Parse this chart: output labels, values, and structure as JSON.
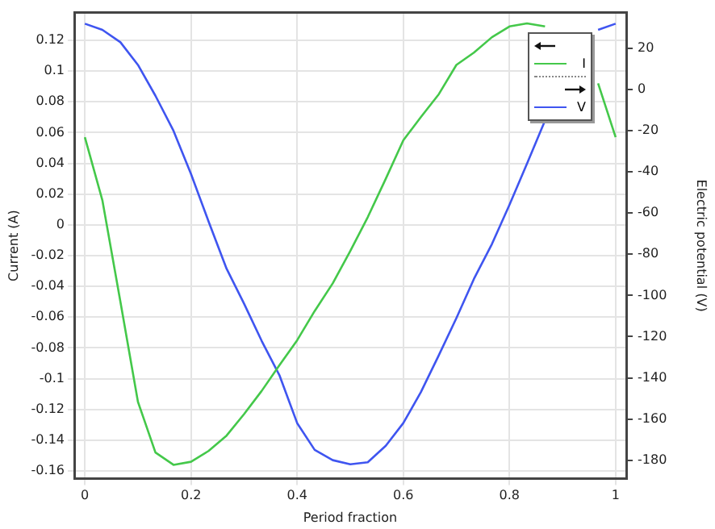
{
  "chart_data": {
    "type": "line",
    "xlabel": "Period fraction",
    "ylabel": "Current (A)",
    "y2label": "Electric potential (V)",
    "x": [
      0,
      0.033,
      0.067,
      0.1,
      0.133,
      0.167,
      0.2,
      0.233,
      0.267,
      0.3,
      0.333,
      0.367,
      0.4,
      0.433,
      0.467,
      0.5,
      0.533,
      0.567,
      0.6,
      0.633,
      0.667,
      0.7,
      0.733,
      0.767,
      0.8,
      0.833,
      0.867,
      0.9,
      0.933,
      0.967,
      1
    ],
    "series": [
      {
        "name": "I",
        "color": "#44c84a",
        "values": [
          0.057,
          0.016,
          -0.05,
          -0.115,
          -0.148,
          -0.156,
          -0.154,
          -0.147,
          -0.137,
          -0.123,
          -0.108,
          -0.091,
          -0.075,
          -0.056,
          -0.038,
          -0.017,
          0.005,
          0.03,
          0.055,
          0.07,
          0.085,
          0.104,
          0.112,
          0.122,
          0.129,
          0.131,
          0.129,
          null,
          null,
          0.092,
          0.057
        ]
      },
      {
        "name": "V",
        "color": "#3f55f0",
        "axis": "y2",
        "values": [
          32,
          29,
          23,
          12,
          -3,
          -20,
          -41,
          -64,
          -87,
          -104,
          -122,
          -139,
          -162,
          -175,
          -180,
          -182,
          -181,
          -173,
          -162,
          -147,
          -129,
          -111,
          -92,
          -75,
          -56,
          -36,
          -15,
          null,
          null,
          29,
          32
        ]
      }
    ],
    "xlim": [
      -0.02,
      1.02
    ],
    "xticks": [
      0,
      0.2,
      0.4,
      0.6,
      0.8,
      1
    ],
    "ylim": [
      -0.165,
      0.138
    ],
    "yticks": [
      -0.16,
      -0.14,
      -0.12,
      -0.1,
      -0.08,
      -0.06,
      -0.04,
      -0.02,
      0,
      0.02,
      0.04,
      0.06,
      0.08,
      0.1,
      0.12
    ],
    "y2lim": [
      -189,
      37.4
    ],
    "y2ticks": [
      -180,
      -160,
      -140,
      -120,
      -100,
      -80,
      -60,
      -40,
      -20,
      0,
      20
    ],
    "grid": true,
    "legend": "top right",
    "line_style": "solid",
    "marker": "none"
  }
}
